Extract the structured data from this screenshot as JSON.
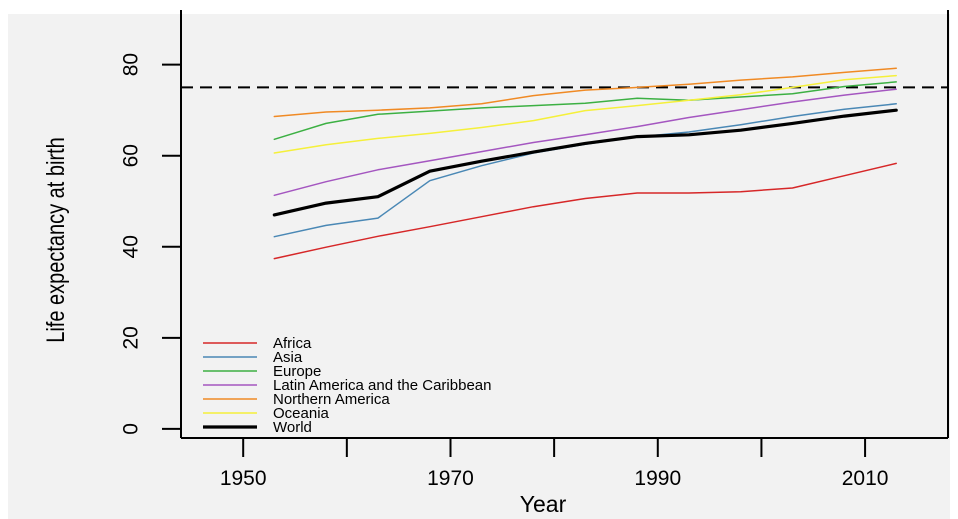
{
  "chart_data": {
    "type": "line",
    "title": "",
    "xlabel": "Year",
    "ylabel": "Life expectancy at birth",
    "xlim": [
      1944,
      2018
    ],
    "ylim": [
      -2,
      92
    ],
    "x_ticks": [
      1950,
      1970,
      1990,
      2010
    ],
    "y_ticks": [
      0,
      20,
      40,
      60,
      80
    ],
    "reference_line": {
      "y": 75,
      "style": "dashed",
      "color": "#000000"
    },
    "grid": false,
    "legend_position": "bottom-left",
    "x": [
      1953,
      1958,
      1963,
      1968,
      1973,
      1978,
      1983,
      1988,
      1993,
      1998,
      2003,
      2008,
      2013
    ],
    "series": [
      {
        "name": "Africa",
        "color": "#d62728",
        "width": 1.5,
        "values": [
          37.4,
          39.9,
          42.3,
          44.4,
          46.6,
          48.8,
          50.6,
          51.8,
          51.8,
          52.1,
          52.9,
          55.6,
          58.3
        ]
      },
      {
        "name": "Asia",
        "color": "#4a88b5",
        "width": 1.5,
        "values": [
          42.2,
          44.7,
          46.3,
          54.5,
          57.8,
          60.6,
          62.5,
          64.1,
          65.2,
          66.8,
          68.6,
          70.2,
          71.4
        ]
      },
      {
        "name": "Europe",
        "color": "#3cb043",
        "width": 1.5,
        "values": [
          63.6,
          67.1,
          69.1,
          69.8,
          70.5,
          71.0,
          71.5,
          72.6,
          72.2,
          72.9,
          73.6,
          75.2,
          76.2
        ]
      },
      {
        "name": "Latin America and the Caribbean",
        "color": "#a456c0",
        "width": 1.5,
        "values": [
          51.3,
          54.3,
          56.9,
          58.9,
          60.9,
          62.9,
          64.6,
          66.4,
          68.4,
          70.1,
          71.8,
          73.3,
          74.6
        ]
      },
      {
        "name": "Northern America",
        "color": "#f08a24",
        "width": 1.5,
        "values": [
          68.6,
          69.6,
          70.0,
          70.5,
          71.4,
          73.2,
          74.4,
          75.0,
          75.7,
          76.6,
          77.3,
          78.3,
          79.2
        ]
      },
      {
        "name": "Oceania",
        "color": "#f5f03a",
        "width": 1.5,
        "values": [
          60.6,
          62.4,
          63.8,
          64.9,
          66.2,
          67.7,
          69.9,
          71.0,
          72.2,
          73.4,
          75.0,
          76.7,
          77.6
        ]
      },
      {
        "name": "World",
        "color": "#000000",
        "width": 3.2,
        "values": [
          47.0,
          49.6,
          51.0,
          56.6,
          58.8,
          60.8,
          62.7,
          64.2,
          64.6,
          65.6,
          67.1,
          68.7,
          70.0
        ]
      }
    ]
  }
}
